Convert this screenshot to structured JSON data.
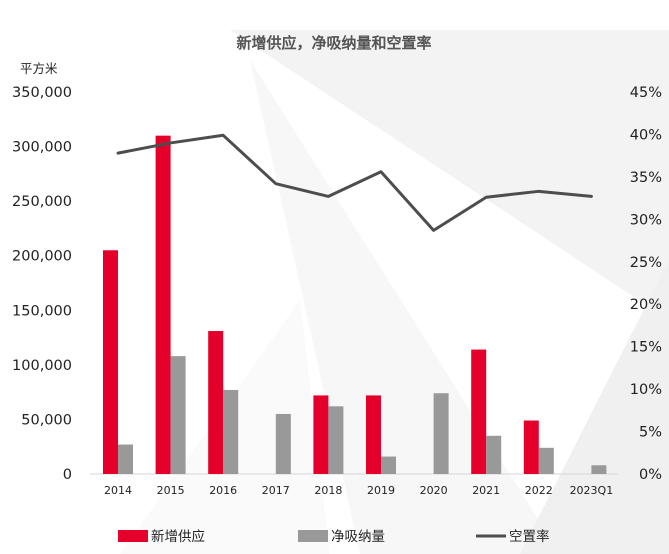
{
  "chart_data": {
    "type": "bar",
    "title": "新增供应，净吸纳量和空置率",
    "y_left_unit": "平方米",
    "categories": [
      "2014",
      "2015",
      "2016",
      "2017",
      "2018",
      "2019",
      "2020",
      "2021",
      "2022",
      "2023Q1"
    ],
    "series": [
      {
        "name": "新增供应",
        "type": "bar",
        "axis": "left",
        "color": "#e4002b",
        "values": [
          205000,
          310000,
          131000,
          0,
          72000,
          72000,
          0,
          114000,
          49000,
          0
        ]
      },
      {
        "name": "净吸纳量",
        "type": "bar",
        "axis": "left",
        "color": "#999999",
        "values": [
          27000,
          108000,
          77000,
          55000,
          62000,
          16000,
          74000,
          35000,
          24000,
          8000
        ]
      },
      {
        "name": "空置率",
        "type": "line",
        "axis": "right",
        "color": "#4d4d4d",
        "values": [
          37.8,
          39.0,
          39.9,
          34.2,
          32.7,
          35.6,
          28.7,
          32.6,
          33.3,
          32.7
        ]
      }
    ],
    "y_left": {
      "range": [
        0,
        350000
      ],
      "ticks": [
        "0",
        "50,000",
        "100,000",
        "150,000",
        "200,000",
        "250,000",
        "300,000",
        "350,000"
      ]
    },
    "y_right": {
      "range": [
        0,
        45
      ],
      "ticks": [
        "0%",
        "5%",
        "10%",
        "15%",
        "20%",
        "25%",
        "30%",
        "35%",
        "40%",
        "45%"
      ]
    },
    "grid": false,
    "legend_position": "bottom"
  }
}
